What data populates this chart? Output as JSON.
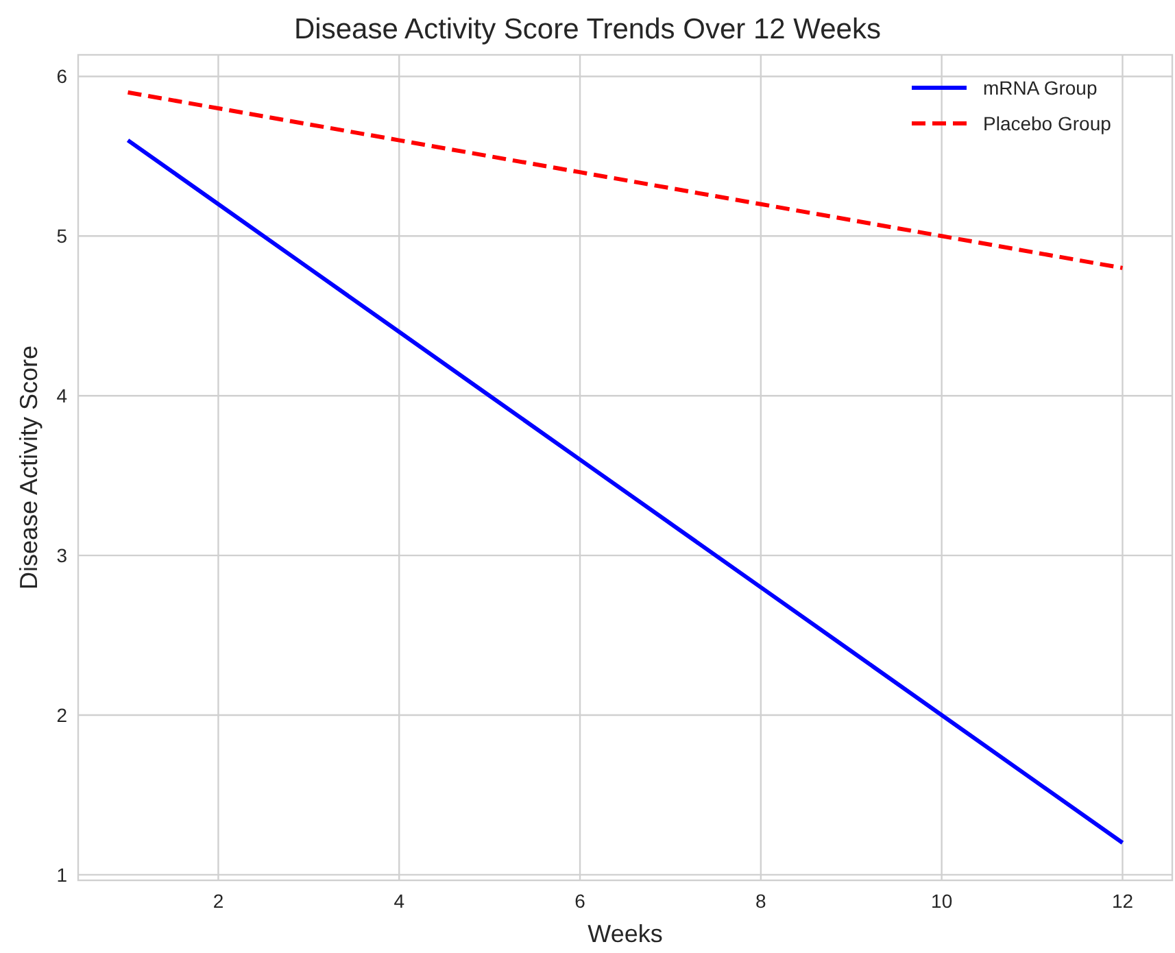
{
  "chart_data": {
    "type": "line",
    "title": "Disease Activity Score Trends Over 12 Weeks",
    "xlabel": "Weeks",
    "ylabel": "Disease Activity Score",
    "x": [
      1,
      2,
      3,
      4,
      5,
      6,
      7,
      8,
      9,
      10,
      11,
      12
    ],
    "series": [
      {
        "name": "mRNA Group",
        "color": "#0000ff",
        "line_style": "solid",
        "values": [
          5.6,
          5.2,
          4.8,
          4.4,
          4.0,
          3.6,
          3.2,
          2.8,
          2.4,
          2.0,
          1.6,
          1.2
        ]
      },
      {
        "name": "Placebo Group",
        "color": "#ff0000",
        "line_style": "dashed",
        "values": [
          5.9,
          5.8,
          5.7,
          5.6,
          5.5,
          5.4,
          5.3,
          5.2,
          5.1,
          5.0,
          4.9,
          4.8
        ]
      }
    ],
    "xlim": [
      0.45,
      12.55
    ],
    "xticks": [
      2,
      4,
      6,
      8,
      10,
      12
    ],
    "ylim": [
      0.965,
      6.135
    ],
    "yticks": [
      1,
      2,
      3,
      4,
      5,
      6
    ],
    "grid": true,
    "legend": "top right"
  }
}
